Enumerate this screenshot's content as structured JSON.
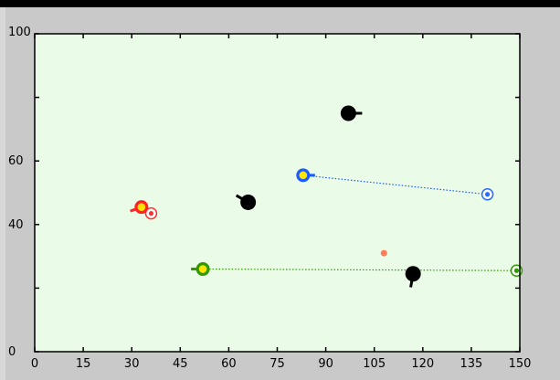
{
  "chart_data": {
    "type": "scatter",
    "xlim": [
      0,
      150
    ],
    "ylim": [
      0,
      100
    ],
    "x_ticks": [
      0,
      15,
      30,
      45,
      60,
      75,
      90,
      105,
      120,
      135,
      150
    ],
    "y_ticks": [
      0,
      40,
      60,
      100
    ],
    "x_tick_labels": [
      "0",
      "15",
      "30",
      "45",
      "60",
      "75",
      "90",
      "105",
      "120",
      "135",
      "150"
    ],
    "y_tick_labels": [
      "0",
      "40",
      "60",
      "100"
    ],
    "grid": false,
    "background_color": "#eafbe7",
    "agents": [
      {
        "name": "red agent",
        "x": 33,
        "y": 45.5,
        "heading_deg": 200,
        "color": "#ff2222",
        "inner": "#ffe400",
        "goal": {
          "x": 36,
          "y": 43.5,
          "color": "#ff3333"
        },
        "trail": false
      },
      {
        "name": "blue agent",
        "x": 83,
        "y": 55.5,
        "heading_deg": 0,
        "color": "#1a5cff",
        "inner": "#ffe400",
        "goal": {
          "x": 140,
          "y": 49.5,
          "color": "#2a6bff"
        },
        "trail": true
      },
      {
        "name": "green agent",
        "x": 52,
        "y": 26,
        "heading_deg": 180,
        "color": "#2f9a00",
        "inner": "#ffe400",
        "goal": {
          "x": 149,
          "y": 25.5,
          "color": "#2f9a00"
        },
        "trail": true
      }
    ],
    "obstacles": [
      {
        "x": 97,
        "y": 75,
        "heading_deg": 0
      },
      {
        "x": 66,
        "y": 47,
        "heading_deg": 150
      },
      {
        "x": 117,
        "y": 24.5,
        "heading_deg": 260
      }
    ],
    "food": [
      {
        "x": 108,
        "y": 31,
        "color": "#ff7b5a"
      }
    ]
  }
}
